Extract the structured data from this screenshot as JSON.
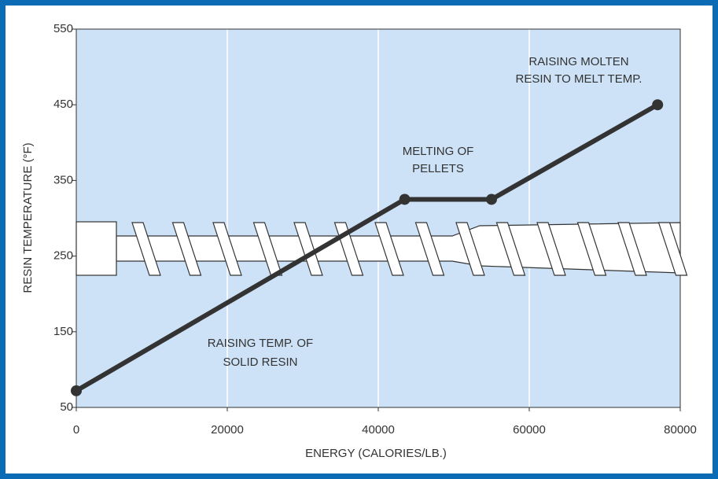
{
  "chart_data": {
    "type": "line",
    "x_label": "ENERGY (CALORIES/LB.)",
    "y_label": "RESIN TEMPERATURE (°F)",
    "x": [
      0,
      43500,
      55000,
      77000
    ],
    "values": [
      72,
      325,
      325,
      450
    ],
    "color": "#333333",
    "markers": true,
    "xlim": [
      0,
      80000
    ],
    "xticks": [
      0,
      20000,
      40000,
      60000,
      80000
    ],
    "ylim": [
      50,
      550
    ],
    "yticks": [
      50,
      150,
      250,
      350,
      450,
      550
    ],
    "grid": "x",
    "background": "#cde2f6",
    "annotations": [
      {
        "lines": [
          "RAISING MOLTEN",
          "RESIN TO MELT TEMP."
        ]
      },
      {
        "lines": [
          "MELTING OF",
          "PELLETS"
        ]
      },
      {
        "lines": [
          "RAISING TEMP. OF",
          "SOLID RESIN"
        ]
      }
    ]
  }
}
